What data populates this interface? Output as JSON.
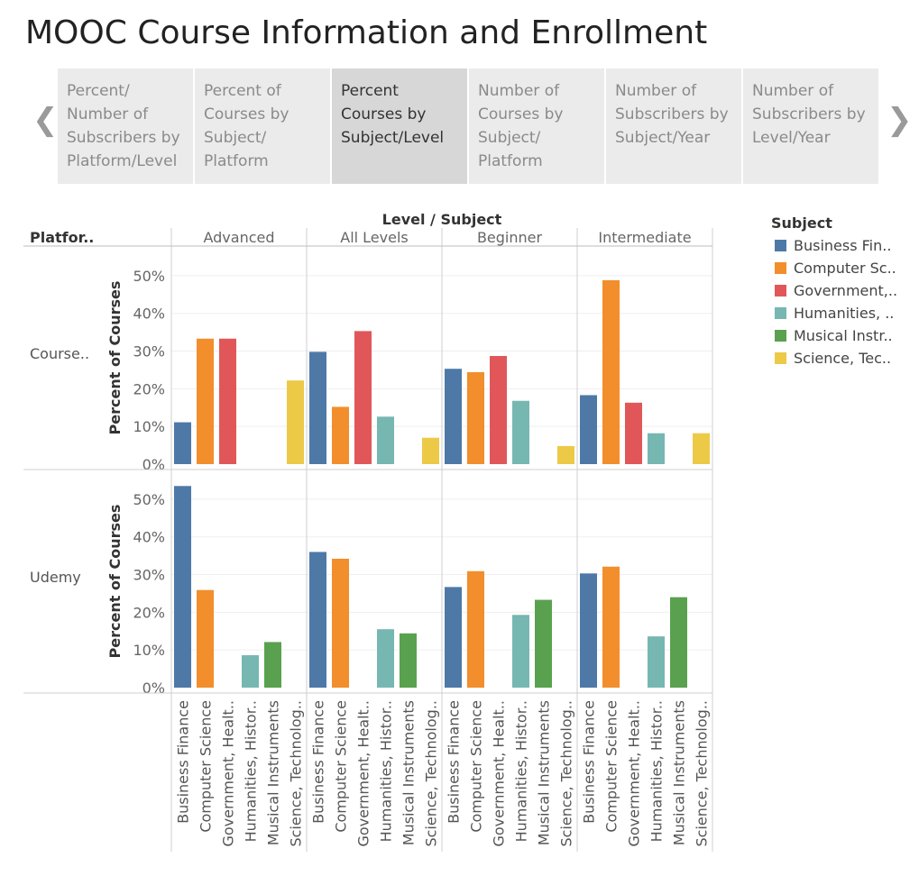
{
  "page": {
    "title": "MOOC Course Information and Enrollment"
  },
  "story": {
    "prev_icon": "chevron-left-icon",
    "next_icon": "chevron-right-icon",
    "points": [
      {
        "label": "Percent/\nNumber of\nSubscribers by\nPlatform/Level",
        "active": false
      },
      {
        "label": "Percent of\nCourses by\nSubject/\nPlatform",
        "active": false
      },
      {
        "label": "Percent\nCourses by\nSubject/Level",
        "active": true
      },
      {
        "label": "Number of\nCourses by\nSubject/\nPlatform",
        "active": false
      },
      {
        "label": "Number of\nSubscribers by\nSubject/Year",
        "active": false
      },
      {
        "label": "Number of\nSubscribers by\nLevel/Year",
        "active": false
      }
    ]
  },
  "legend": {
    "title": "Subject",
    "items": [
      {
        "label": "Business Fin..",
        "color": "#4e79a7"
      },
      {
        "label": "Computer Sc..",
        "color": "#f28e2b"
      },
      {
        "label": "Government,..",
        "color": "#e15759"
      },
      {
        "label": "Humanities, ..",
        "color": "#76b7b2"
      },
      {
        "label": "Musical Instr..",
        "color": "#59a14f"
      },
      {
        "label": "Science, Tec..",
        "color": "#edc948"
      }
    ]
  },
  "chart_data": {
    "type": "bar",
    "header": "Level / Subject",
    "row_header": "Platfor..",
    "ylabel": "Percent of Courses",
    "levels": [
      "Advanced",
      "All Levels",
      "Beginner",
      "Intermediate"
    ],
    "platforms": [
      "Course..",
      "Udemy"
    ],
    "subject_labels": [
      "Business Finance",
      "Computer Science",
      "Government, Healt..",
      "Humanities, Histor..",
      "Musical Instruments",
      "Science, Technolog.."
    ],
    "colors": [
      "#4e79a7",
      "#f28e2b",
      "#e15759",
      "#76b7b2",
      "#59a14f",
      "#edc948"
    ],
    "y_ticks": [
      "0%",
      "10%",
      "20%",
      "30%",
      "40%",
      "50%"
    ],
    "ylim": [
      0,
      55
    ],
    "rows": [
      {
        "platform": "Course..",
        "values": {
          "Advanced": [
            11.1,
            33.3,
            33.3,
            null,
            null,
            22.2
          ],
          "All Levels": [
            29.8,
            15.2,
            35.3,
            12.6,
            null,
            7.0
          ],
          "Beginner": [
            25.3,
            24.4,
            28.7,
            16.8,
            null,
            4.8
          ],
          "Intermediate": [
            18.3,
            48.8,
            16.3,
            8.2,
            null,
            8.2
          ]
        }
      },
      {
        "platform": "Udemy",
        "values": {
          "Advanced": [
            53.5,
            25.9,
            null,
            8.6,
            12.1,
            null
          ],
          "All Levels": [
            36.0,
            34.2,
            null,
            15.5,
            14.4,
            null
          ],
          "Beginner": [
            26.7,
            30.9,
            null,
            19.3,
            23.3,
            null
          ],
          "Intermediate": [
            30.3,
            32.1,
            null,
            13.6,
            24.0,
            null
          ]
        }
      }
    ]
  }
}
